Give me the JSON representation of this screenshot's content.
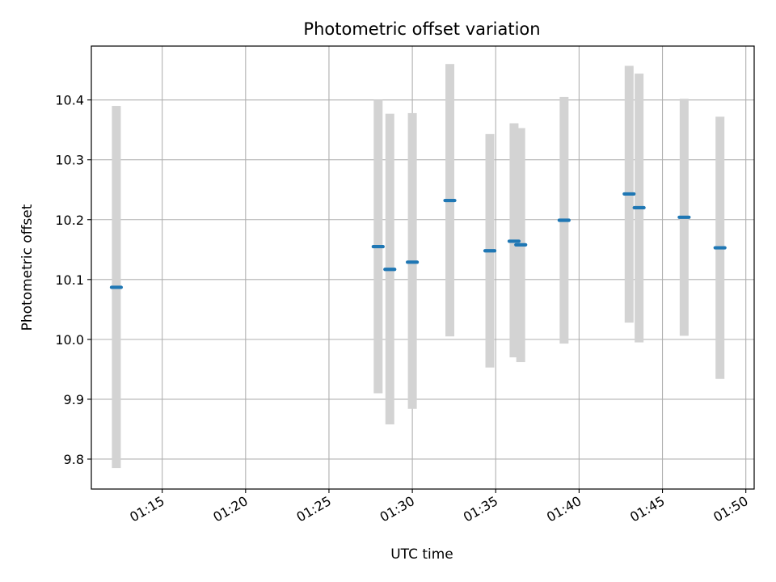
{
  "chart_data": {
    "type": "scatter",
    "title": "Photometric offset variation",
    "xlabel": "UTC time",
    "ylabel": "Photometric offset",
    "x_unit": "minutes",
    "xlim": [
      "01:10:45",
      "01:50:30"
    ],
    "ylim": [
      9.75,
      10.49
    ],
    "x_ticks": [
      "01:15",
      "01:20",
      "01:25",
      "01:30",
      "01:35",
      "01:40",
      "01:45",
      "01:50"
    ],
    "y_ticks": [
      9.8,
      9.9,
      10.0,
      10.1,
      10.2,
      10.3,
      10.4
    ],
    "grid": true,
    "errorbar_color": "#d3d3d3",
    "point_color": "#1f77b4",
    "points": [
      {
        "time": "01:12:15",
        "value": 10.087,
        "ymin": 9.785,
        "ymax": 10.39
      },
      {
        "time": "01:27:57",
        "value": 10.155,
        "ymin": 9.91,
        "ymax": 10.4
      },
      {
        "time": "01:28:39",
        "value": 10.117,
        "ymin": 9.858,
        "ymax": 10.377
      },
      {
        "time": "01:30:00",
        "value": 10.129,
        "ymin": 9.884,
        "ymax": 10.378
      },
      {
        "time": "01:32:15",
        "value": 10.232,
        "ymin": 10.005,
        "ymax": 10.46
      },
      {
        "time": "01:34:39",
        "value": 10.148,
        "ymin": 9.953,
        "ymax": 10.343
      },
      {
        "time": "01:36:06",
        "value": 10.164,
        "ymin": 9.97,
        "ymax": 10.361
      },
      {
        "time": "01:36:30",
        "value": 10.158,
        "ymin": 9.962,
        "ymax": 10.353
      },
      {
        "time": "01:39:06",
        "value": 10.199,
        "ymin": 9.993,
        "ymax": 10.405
      },
      {
        "time": "01:43:00",
        "value": 10.243,
        "ymin": 10.028,
        "ymax": 10.457
      },
      {
        "time": "01:43:36",
        "value": 10.22,
        "ymin": 9.995,
        "ymax": 10.444
      },
      {
        "time": "01:46:18",
        "value": 10.204,
        "ymin": 10.006,
        "ymax": 10.402
      },
      {
        "time": "01:48:27",
        "value": 10.153,
        "ymin": 9.934,
        "ymax": 10.372
      }
    ]
  }
}
